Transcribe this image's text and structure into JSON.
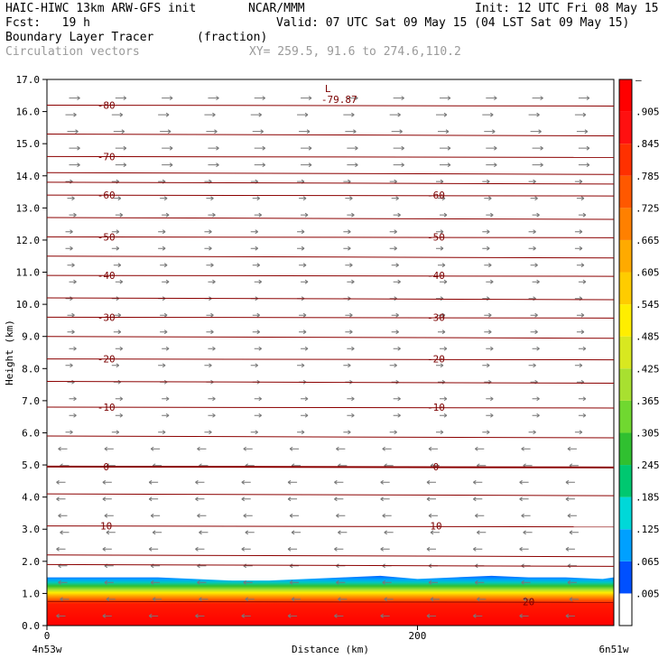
{
  "header": {
    "title": "HAIC-HIWC 13km ARW-GFS init",
    "org": "NCAR/MMM",
    "init": "Init: 12 UTC Fri 08 May 15",
    "fcst": "Fcst:   19 h",
    "valid": "Valid: 07 UTC Sat 09 May 15 (04 LST Sat 09 May 15)",
    "field": "Boundary Layer Tracer",
    "units": "(fraction)",
    "vectors": "Circulation vectors",
    "xy": "XY= 259.5, 91.6 to 274.6,110.2"
  },
  "chart_data": {
    "type": "heatmap",
    "title": "Boundary Layer Tracer",
    "ylabel": "Height (km)",
    "xlabel": "Distance (km)",
    "ylim": [
      0,
      17
    ],
    "xlim": [
      0,
      306
    ],
    "yticks": [
      "0.0",
      "1.0",
      "2.0",
      "3.0",
      "4.0",
      "5.0",
      "6.0",
      "7.0",
      "8.0",
      "9.0",
      "10.0",
      "11.0",
      "12.0",
      "13.0",
      "14.0",
      "15.0",
      "16.0",
      "17.0"
    ],
    "xticks": [
      {
        "value": 0,
        "label": "0"
      },
      {
        "value": 200,
        "label": "200"
      }
    ],
    "x_endpoints": {
      "left": "4n53w",
      "right": "6n51w"
    },
    "colorbar": {
      "labels": [
        ".005",
        ".065",
        ".125",
        ".185",
        ".245",
        ".305",
        ".365",
        ".425",
        ".485",
        ".545",
        ".605",
        ".665",
        ".725",
        ".785",
        ".845",
        ".905"
      ],
      "top_label": "–",
      "colors": [
        "#ffffff",
        "#0050ff",
        "#00a0ff",
        "#00d8d8",
        "#00c870",
        "#30c030",
        "#70d830",
        "#a8e030",
        "#d8e820",
        "#ffee00",
        "#ffcc00",
        "#ffaa00",
        "#ff8000",
        "#ff5800",
        "#ff3000",
        "#ff1010",
        "#ff0000"
      ]
    },
    "tracer_layer": {
      "top_km": [
        1.5,
        1.5,
        1.5,
        1.5,
        1.45,
        1.4,
        1.4,
        1.45,
        1.5,
        1.55,
        1.45,
        1.5,
        1.55,
        1.5,
        1.5,
        1.45,
        1.5
      ],
      "x": [
        0,
        20,
        40,
        60,
        80,
        100,
        120,
        140,
        160,
        180,
        200,
        220,
        240,
        260,
        280,
        300,
        306
      ]
    },
    "temperature_contours": [
      {
        "level": "-80",
        "height_km": 16.2
      },
      {
        "level": "-70",
        "height_km": 14.6
      },
      {
        "level": "-60",
        "height_km": 13.4
      },
      {
        "level": "-50",
        "height_km": 12.1
      },
      {
        "level": "-40",
        "height_km": 10.9
      },
      {
        "level": "-30",
        "height_km": 9.6
      },
      {
        "level": "-20",
        "height_km": 8.3
      },
      {
        "level": "-10",
        "height_km": 6.8
      },
      {
        "level": "0",
        "height_km": 4.95
      },
      {
        "level": "10",
        "height_km": 3.1
      },
      {
        "level": "20",
        "height_km": 0.75
      }
    ],
    "extra_contour_heights_km": [
      15.3,
      14.1,
      13.8,
      12.7,
      11.5,
      10.2,
      9.0,
      7.6,
      5.9,
      4.1,
      2.2,
      1.9
    ],
    "low_marker": {
      "label": "L",
      "value": "-79.87",
      "x_km": 150,
      "height_km": 16.5
    }
  }
}
